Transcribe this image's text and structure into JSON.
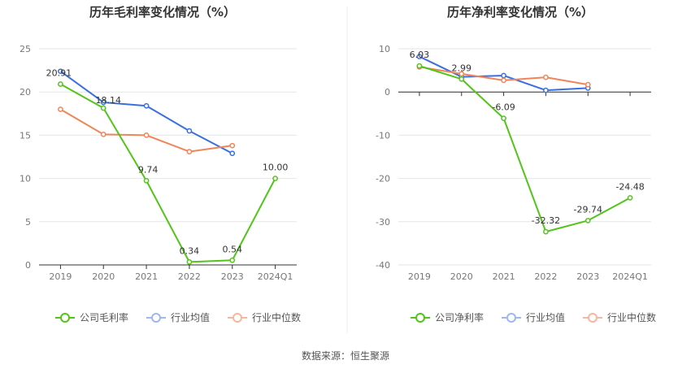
{
  "chart_data": [
    {
      "type": "line",
      "title": "历年毛利率变化情况（%）",
      "categories": [
        "2019",
        "2020",
        "2021",
        "2022",
        "2023",
        "2024Q1"
      ],
      "ylim": [
        0,
        25
      ],
      "yticks": [
        0,
        5,
        10,
        15,
        20,
        25
      ],
      "grid": true,
      "legend": "bottom",
      "series": [
        {
          "name": "公司毛利率",
          "color": "#52c41a",
          "values": [
            20.91,
            18.14,
            9.74,
            0.34,
            0.54,
            10.0
          ],
          "labels": [
            "20.91",
            "18.14",
            "9.74",
            "0.34",
            "0.54",
            "10.00"
          ]
        },
        {
          "name": "行业均值",
          "color": "#3a6fe0",
          "values": [
            22.4,
            18.8,
            18.4,
            15.5,
            12.9,
            null
          ]
        },
        {
          "name": "行业中位数",
          "color": "#f0855a",
          "values": [
            18.0,
            15.1,
            15.0,
            13.1,
            13.8,
            null
          ]
        }
      ]
    },
    {
      "type": "line",
      "title": "历年净利率变化情况（%）",
      "categories": [
        "2019",
        "2020",
        "2021",
        "2022",
        "2023",
        "2024Q1"
      ],
      "ylim": [
        -40,
        10
      ],
      "yticks": [
        -40,
        -30,
        -20,
        -10,
        0,
        10
      ],
      "grid": true,
      "legend": "bottom",
      "series": [
        {
          "name": "公司净利率",
          "color": "#52c41a",
          "values": [
            6.03,
            2.99,
            -6.09,
            -32.32,
            -29.74,
            -24.48
          ],
          "labels": [
            "6.03",
            "2.99",
            "-6.09",
            "-32.32",
            "-29.74",
            "-24.48"
          ]
        },
        {
          "name": "行业均值",
          "color": "#3a6fe0",
          "values": [
            8.2,
            3.5,
            3.8,
            0.4,
            0.9,
            null
          ]
        },
        {
          "name": "行业中位数",
          "color": "#f0855a",
          "values": [
            5.8,
            4.2,
            2.7,
            3.4,
            1.7,
            null
          ]
        }
      ]
    }
  ],
  "footer": {
    "source": "数据来源：恒生聚源"
  }
}
